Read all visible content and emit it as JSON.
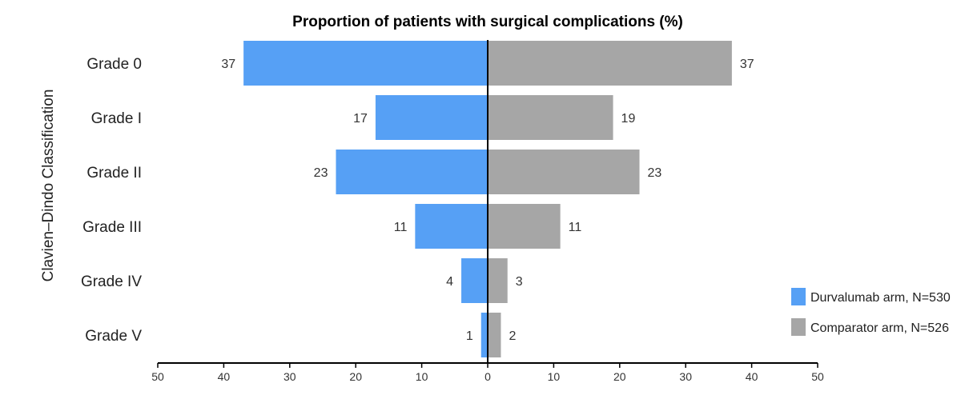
{
  "chart_data": {
    "type": "bar",
    "orientation": "horizontal-diverging",
    "title": "Proportion of patients with surgical complications (%)",
    "xlabel": "",
    "ylabel": "Clavien–Dindo Classification",
    "categories": [
      "Grade 0",
      "Grade I",
      "Grade II",
      "Grade III",
      "Grade IV",
      "Grade V"
    ],
    "series": [
      {
        "name": "Durvalumab arm, N=530",
        "side": "left",
        "values": [
          37,
          17,
          23,
          11,
          4,
          1
        ],
        "color": "#56A0F5"
      },
      {
        "name": "Comparator arm, N=526",
        "side": "right",
        "values": [
          37,
          19,
          23,
          11,
          3,
          2
        ],
        "color": "#A6A6A6"
      }
    ],
    "xlim": [
      -50,
      50
    ],
    "xticks": [
      "50",
      "40",
      "30",
      "20",
      "10",
      "0",
      "10",
      "20",
      "30",
      "40",
      "50"
    ],
    "grid": false,
    "legend_position": "bottom-right"
  }
}
